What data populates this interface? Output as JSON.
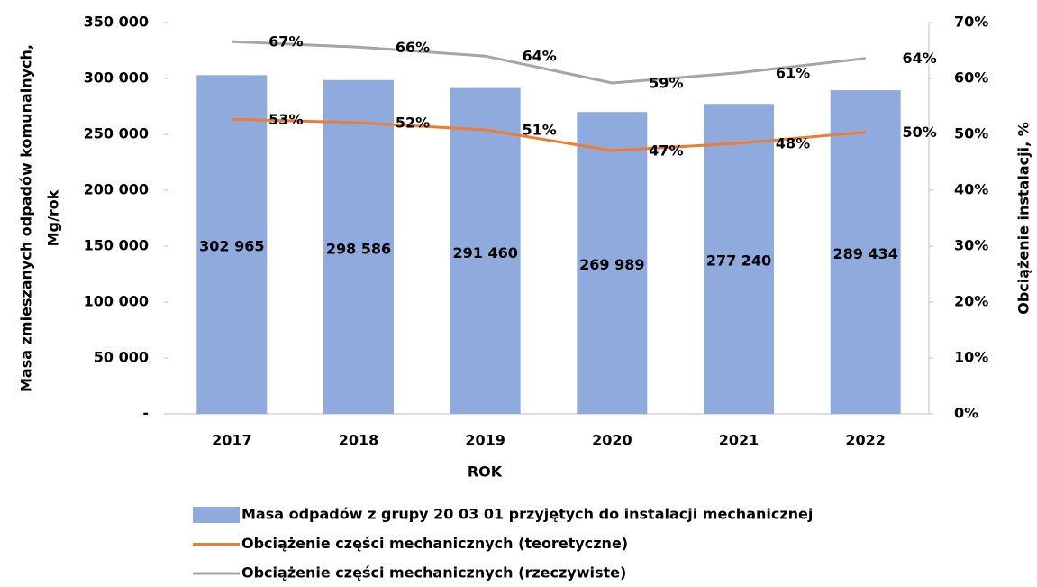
{
  "chart_data": {
    "type": "bar",
    "xlabel": "ROK",
    "ylabel": [
      "Masa zmieszanych odpadów komunalnych,",
      "Mg/rok"
    ],
    "y2label": "Obciążenie instalacji, %",
    "categories": [
      "2017",
      "2018",
      "2019",
      "2020",
      "2021",
      "2022"
    ],
    "series": [
      {
        "name": "Masa odpadów z grupy 20 03 01 przyjętych do instalacji mechanicznej",
        "type": "bar",
        "color": "#8faadc",
        "values": [
          302965,
          298586,
          291460,
          269989,
          277240,
          289434
        ],
        "value_labels": [
          "302 965",
          "298 586",
          "291 460",
          "269 989",
          "277 240",
          "289 434"
        ]
      },
      {
        "name": "Obciążenie części mechanicznych (teoretyczne)",
        "type": "line",
        "axis": "y2",
        "color": "#ed7d31",
        "values": [
          52.7,
          52.1,
          50.8,
          47.1,
          48.4,
          50.4
        ],
        "value_labels": [
          "53%",
          "52%",
          "51%",
          "47%",
          "48%",
          "50%"
        ]
      },
      {
        "name": "Obciążenie części mechanicznych (rzeczywiste)",
        "type": "line",
        "axis": "y2",
        "color": "#a5a5a5",
        "values": [
          66.6,
          65.6,
          64.0,
          59.2,
          61.0,
          63.6
        ],
        "value_labels": [
          "67%",
          "66%",
          "64%",
          "59%",
          "61%",
          "64%"
        ]
      }
    ],
    "ylim": [
      0,
      350000
    ],
    "yticks": [
      {
        "value": 0,
        "label": "-"
      },
      {
        "value": 50000,
        "label": "50 000"
      },
      {
        "value": 100000,
        "label": "100 000"
      },
      {
        "value": 150000,
        "label": "150 000"
      },
      {
        "value": 200000,
        "label": "200 000"
      },
      {
        "value": 250000,
        "label": "250 000"
      },
      {
        "value": 300000,
        "label": "300 000"
      },
      {
        "value": 350000,
        "label": "350 000"
      }
    ],
    "y2lim": [
      0,
      70
    ],
    "y2ticks": [
      {
        "value": 0,
        "label": "0%"
      },
      {
        "value": 10,
        "label": "10%"
      },
      {
        "value": 20,
        "label": "20%"
      },
      {
        "value": 30,
        "label": "30%"
      },
      {
        "value": 40,
        "label": "40%"
      },
      {
        "value": 50,
        "label": "50%"
      },
      {
        "value": 60,
        "label": "60%"
      },
      {
        "value": 70,
        "label": "70%"
      }
    ],
    "grid": false
  }
}
